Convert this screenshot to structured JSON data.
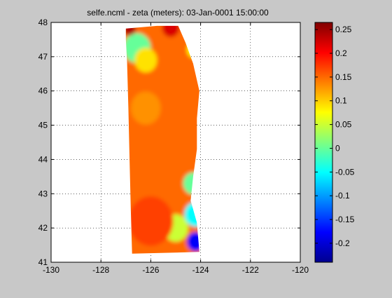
{
  "chart_data": {
    "type": "heatmap",
    "title": "selfe.ncml - zeta (meters): 03-Jan-0001 15:00:00",
    "xlabel": "",
    "ylabel": "",
    "xlim": [
      -130,
      -120
    ],
    "ylim": [
      41,
      48
    ],
    "x_ticks": [
      -130,
      -128,
      -126,
      -124,
      -122,
      -120
    ],
    "y_ticks": [
      41,
      42,
      43,
      44,
      45,
      46,
      47,
      48
    ],
    "grid": true,
    "colormap": "jet",
    "colorbar": {
      "clim": [
        -0.24,
        0.265
      ],
      "ticks": [
        -0.2,
        -0.15,
        -0.1,
        -0.05,
        0,
        0.05,
        0.1,
        0.15,
        0.2,
        0.25
      ],
      "tick_labels": [
        "-0.2",
        "-0.15",
        "-0.1",
        "-0.05",
        "0",
        "0.05",
        "0.1",
        "0.15",
        "0.2",
        "0.25"
      ]
    },
    "domain_outline": [
      [
        -127.0,
        47.82
      ],
      [
        -125.75,
        47.9
      ],
      [
        -124.9,
        47.9
      ],
      [
        -124.6,
        47.4
      ],
      [
        -124.3,
        46.8
      ],
      [
        -124.05,
        46.0
      ],
      [
        -124.15,
        45.2
      ],
      [
        -124.15,
        44.3
      ],
      [
        -124.3,
        43.5
      ],
      [
        -124.4,
        42.8
      ],
      [
        -124.15,
        42.15
      ],
      [
        -124.05,
        41.3
      ],
      [
        -126.75,
        41.25
      ],
      [
        -126.8,
        42.5
      ],
      [
        -126.85,
        44.0
      ],
      [
        -126.9,
        45.5
      ],
      [
        -126.95,
        46.8
      ],
      [
        -127.0,
        47.5
      ]
    ],
    "field": {
      "background_value": 0.15,
      "features": [
        {
          "x": -126.55,
          "y": 47.25,
          "value": 0.0,
          "radius": 0.55
        },
        {
          "x": -126.2,
          "y": 46.9,
          "value": 0.09,
          "radius": 0.45
        },
        {
          "x": -124.3,
          "y": 47.75,
          "value": 0.02,
          "radius": 0.3
        },
        {
          "x": -124.25,
          "y": 47.2,
          "value": 0.08,
          "radius": 0.3
        },
        {
          "x": -126.85,
          "y": 47.82,
          "value": 0.24,
          "radius": 0.25
        },
        {
          "x": -125.2,
          "y": 47.85,
          "value": 0.22,
          "radius": 0.35
        },
        {
          "x": -124.3,
          "y": 43.3,
          "value": 0.0,
          "radius": 0.4
        },
        {
          "x": -124.2,
          "y": 42.4,
          "value": -0.05,
          "radius": 0.45
        },
        {
          "x": -124.2,
          "y": 41.6,
          "value": -0.18,
          "radius": 0.35
        },
        {
          "x": -125.0,
          "y": 42.0,
          "value": 0.05,
          "radius": 0.5
        },
        {
          "x": -126.0,
          "y": 42.2,
          "value": 0.17,
          "radius": 0.9
        },
        {
          "x": -126.2,
          "y": 45.5,
          "value": 0.13,
          "radius": 0.6
        },
        {
          "x": -125.0,
          "y": 45.2,
          "value": 0.15,
          "radius": 0.5
        },
        {
          "x": -125.5,
          "y": 44.2,
          "value": 0.15,
          "radius": 0.7
        }
      ]
    }
  }
}
